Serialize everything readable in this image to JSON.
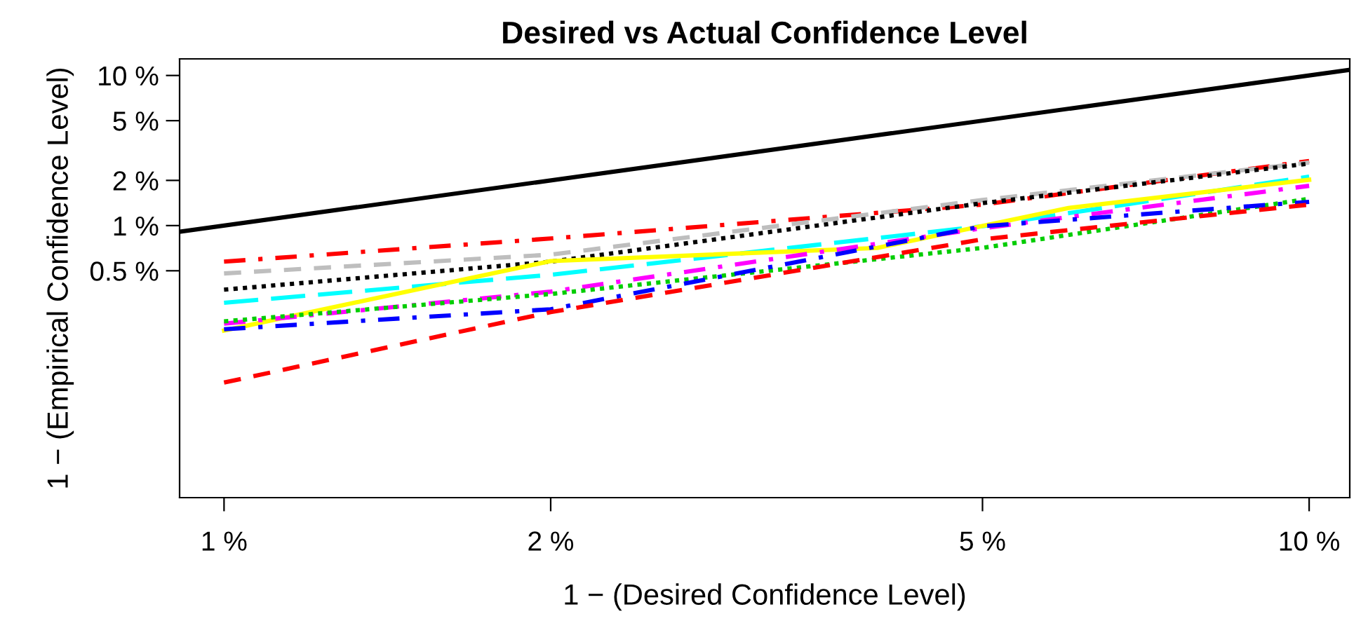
{
  "chart_data": {
    "type": "line",
    "title": "Desired vs Actual Confidence Level",
    "xlabel": "1 − (Desired Confidence Level)",
    "ylabel": "1 − (Empirical Confidence Level)",
    "log": "xy",
    "grid": false,
    "legend": false,
    "marker": "none",
    "xlim": [
      0.91,
      10.9
    ],
    "ylim": [
      0.0154,
      12.9
    ],
    "xticks": [
      {
        "value": 1,
        "label": "1 %"
      },
      {
        "value": 2,
        "label": "2 %"
      },
      {
        "value": 5,
        "label": "5 %"
      },
      {
        "value": 10,
        "label": "10 %"
      }
    ],
    "yticks": [
      {
        "value": 0.5,
        "label": "0.5 %"
      },
      {
        "value": 1,
        "label": "1 %"
      },
      {
        "value": 2,
        "label": "2 %"
      },
      {
        "value": 5,
        "label": "5 %"
      },
      {
        "value": 10,
        "label": "10 %"
      }
    ],
    "series": [
      {
        "color": "#000000",
        "line_style": "solid",
        "x": [
          0.91,
          10.9
        ],
        "values": [
          0.91,
          10.9
        ]
      },
      {
        "color": "#ff0000",
        "line_style": "dashdot",
        "x": [
          1,
          2,
          5,
          10
        ],
        "values": [
          0.575,
          0.82,
          1.38,
          2.69
        ]
      },
      {
        "color": "#bebebe",
        "line_style": "dashed",
        "x": [
          1,
          2,
          5,
          10
        ],
        "values": [
          0.48,
          0.64,
          1.48,
          2.63
        ]
      },
      {
        "color": "#000000",
        "line_style": "dotted",
        "x": [
          1,
          2,
          5,
          10
        ],
        "values": [
          0.374,
          0.575,
          1.41,
          2.59
        ]
      },
      {
        "color": "#00ffff",
        "line_style": "longdash",
        "x": [
          1,
          2,
          5,
          10
        ],
        "values": [
          0.306,
          0.47,
          0.99,
          2.12
        ]
      },
      {
        "color": "#ffff00",
        "line_style": "solid",
        "x": [
          1,
          2,
          4,
          6,
          10
        ],
        "values": [
          0.2,
          0.58,
          0.71,
          1.31,
          2.02
        ]
      },
      {
        "color": "#ff00ff",
        "line_style": "dashdot",
        "x": [
          1,
          2,
          5,
          10
        ],
        "values": [
          0.222,
          0.363,
          0.96,
          1.84
        ]
      },
      {
        "color": "#00cd00",
        "line_style": "dotted",
        "x": [
          1,
          2,
          5,
          10
        ],
        "values": [
          0.23,
          0.35,
          0.71,
          1.51
        ]
      },
      {
        "color": "#0000ff",
        "line_style": "dashdot",
        "x": [
          1,
          2,
          5,
          10
        ],
        "values": [
          0.204,
          0.277,
          0.99,
          1.44
        ]
      },
      {
        "color": "#ff0000",
        "line_style": "dashed",
        "x": [
          1,
          2,
          5,
          10
        ],
        "values": [
          0.09,
          0.265,
          0.81,
          1.38
        ]
      }
    ]
  }
}
